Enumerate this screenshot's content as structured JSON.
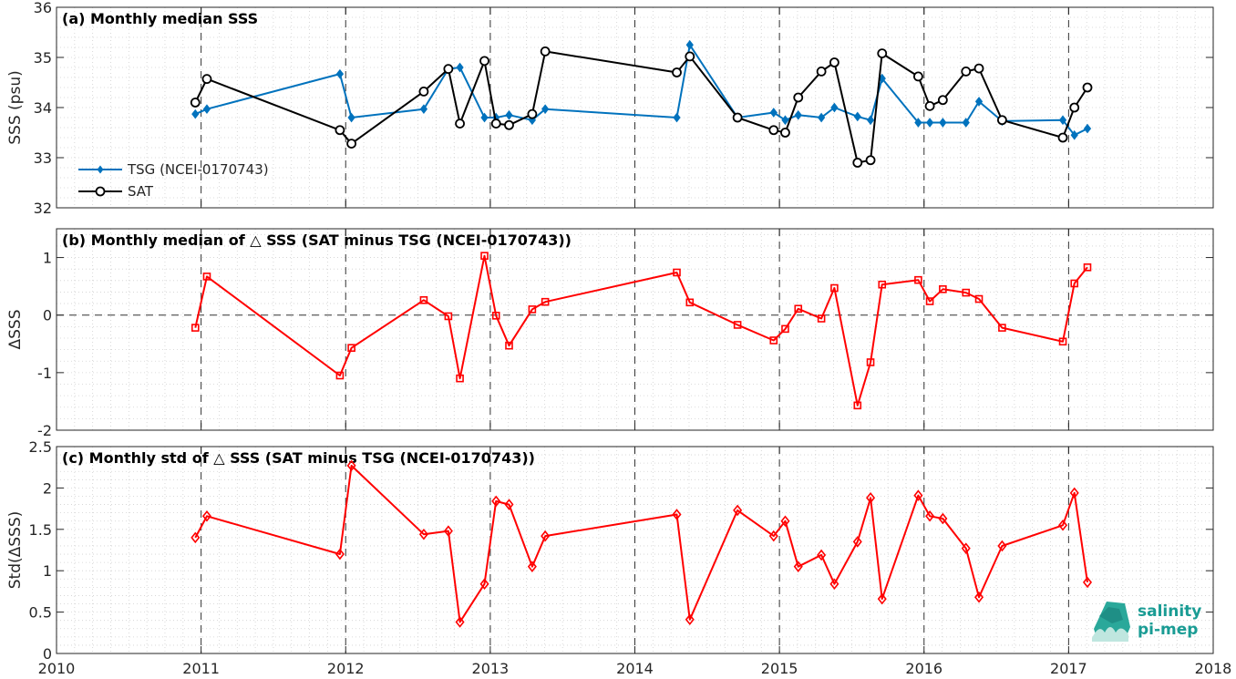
{
  "chart_data": [
    {
      "type": "line",
      "title": "(a) Monthly median SSS",
      "ylabel": "SSS (psu)",
      "xlim": [
        2010,
        2018
      ],
      "ylim": [
        32,
        36
      ],
      "yticks": [
        32,
        33,
        34,
        35,
        36
      ],
      "grid": "minor-dotted",
      "legend_position": "bottom-left",
      "series": [
        {
          "name": "TSG (NCEI-0170743)",
          "color": "#0072bd",
          "marker": "diamond-filled",
          "x": [
            2010.96,
            2011.04,
            2011.96,
            2012.04,
            2012.54,
            2012.71,
            2012.79,
            2012.96,
            2013.04,
            2013.13,
            2013.29,
            2013.38,
            2014.29,
            2014.38,
            2014.71,
            2014.96,
            2015.04,
            2015.13,
            2015.29,
            2015.38,
            2015.54,
            2015.63,
            2015.71,
            2015.96,
            2016.04,
            2016.13,
            2016.29,
            2016.38,
            2016.54,
            2016.96,
            2017.04,
            2017.13
          ],
          "values": [
            33.87,
            33.97,
            34.67,
            33.8,
            33.97,
            34.77,
            34.8,
            33.8,
            33.8,
            33.85,
            33.75,
            33.97,
            33.8,
            35.25,
            33.8,
            33.9,
            33.75,
            33.85,
            33.8,
            34.0,
            33.82,
            33.75,
            34.58,
            33.7,
            33.7,
            33.7,
            33.7,
            34.12,
            33.73,
            33.75,
            33.45,
            33.58
          ]
        },
        {
          "name": "SAT",
          "color": "#000000",
          "marker": "circle-open",
          "x": [
            2010.96,
            2011.04,
            2011.96,
            2012.04,
            2012.54,
            2012.71,
            2012.79,
            2012.96,
            2013.04,
            2013.13,
            2013.29,
            2013.38,
            2014.29,
            2014.38,
            2014.71,
            2014.96,
            2015.04,
            2015.13,
            2015.29,
            2015.38,
            2015.54,
            2015.63,
            2015.71,
            2015.96,
            2016.04,
            2016.13,
            2016.29,
            2016.38,
            2016.54,
            2016.96,
            2017.04,
            2017.13
          ],
          "values": [
            34.1,
            34.57,
            33.55,
            33.28,
            34.32,
            34.77,
            33.68,
            34.93,
            33.68,
            33.65,
            33.87,
            35.12,
            34.7,
            35.02,
            33.8,
            33.55,
            33.5,
            34.2,
            34.72,
            34.9,
            32.9,
            32.95,
            35.08,
            34.62,
            34.03,
            34.15,
            34.72,
            34.78,
            33.75,
            33.4,
            34.0,
            34.4
          ]
        }
      ]
    },
    {
      "type": "line",
      "title": "(b) Monthly median of △ SSS (SAT minus TSG (NCEI-0170743))",
      "ylabel": "ΔSSS",
      "xlim": [
        2010,
        2018
      ],
      "ylim": [
        -2,
        1.5
      ],
      "yticks": [
        -2,
        -1,
        0,
        1
      ],
      "reference_line": 0,
      "grid": "minor-dotted",
      "series": [
        {
          "color": "#ff0000",
          "marker": "square-open",
          "x": [
            2010.96,
            2011.04,
            2011.96,
            2012.04,
            2012.54,
            2012.71,
            2012.79,
            2012.96,
            2013.04,
            2013.13,
            2013.29,
            2013.38,
            2014.29,
            2014.38,
            2014.71,
            2014.96,
            2015.04,
            2015.13,
            2015.29,
            2015.38,
            2015.54,
            2015.63,
            2015.71,
            2015.96,
            2016.04,
            2016.13,
            2016.29,
            2016.38,
            2016.54,
            2016.96,
            2017.04,
            2017.13
          ],
          "values": [
            -0.22,
            0.67,
            -1.05,
            -0.57,
            0.26,
            -0.02,
            -1.1,
            1.03,
            -0.01,
            -0.53,
            0.1,
            0.23,
            0.74,
            0.22,
            -0.17,
            -0.44,
            -0.24,
            0.11,
            -0.06,
            0.47,
            -1.57,
            -0.82,
            0.53,
            0.61,
            0.24,
            0.45,
            0.39,
            0.28,
            -0.22,
            -0.46,
            0.55,
            0.83
          ]
        }
      ]
    },
    {
      "type": "line",
      "title": "(c) Monthly std of △ SSS (SAT minus TSG (NCEI-0170743))",
      "ylabel": "Std(ΔSSS)",
      "xlabel": "",
      "xlim": [
        2010,
        2018
      ],
      "ylim": [
        0,
        2.5
      ],
      "yticks": [
        0,
        0.5,
        1,
        1.5,
        2,
        2.5
      ],
      "xticks": [
        2010,
        2011,
        2012,
        2013,
        2014,
        2015,
        2016,
        2017,
        2018
      ],
      "grid": "minor-dotted",
      "series": [
        {
          "color": "#ff0000",
          "marker": "diamond-open",
          "x": [
            2010.96,
            2011.04,
            2011.96,
            2012.04,
            2012.54,
            2012.71,
            2012.79,
            2012.96,
            2013.04,
            2013.13,
            2013.29,
            2013.38,
            2014.29,
            2014.38,
            2014.71,
            2014.96,
            2015.04,
            2015.13,
            2015.29,
            2015.38,
            2015.54,
            2015.63,
            2015.71,
            2015.96,
            2016.04,
            2016.13,
            2016.29,
            2016.38,
            2016.54,
            2016.96,
            2017.04,
            2017.13
          ],
          "values": [
            1.4,
            1.66,
            1.2,
            2.27,
            1.44,
            1.48,
            0.38,
            0.84,
            1.84,
            1.8,
            1.05,
            1.42,
            1.68,
            0.41,
            1.73,
            1.42,
            1.6,
            1.05,
            1.19,
            0.84,
            1.35,
            1.88,
            0.66,
            1.91,
            1.66,
            1.63,
            1.27,
            0.68,
            1.3,
            1.55,
            1.94,
            0.86
          ]
        }
      ]
    }
  ],
  "logo": {
    "line1": "salinity",
    "line2": "pi-mep",
    "color": "#1a9c94"
  }
}
